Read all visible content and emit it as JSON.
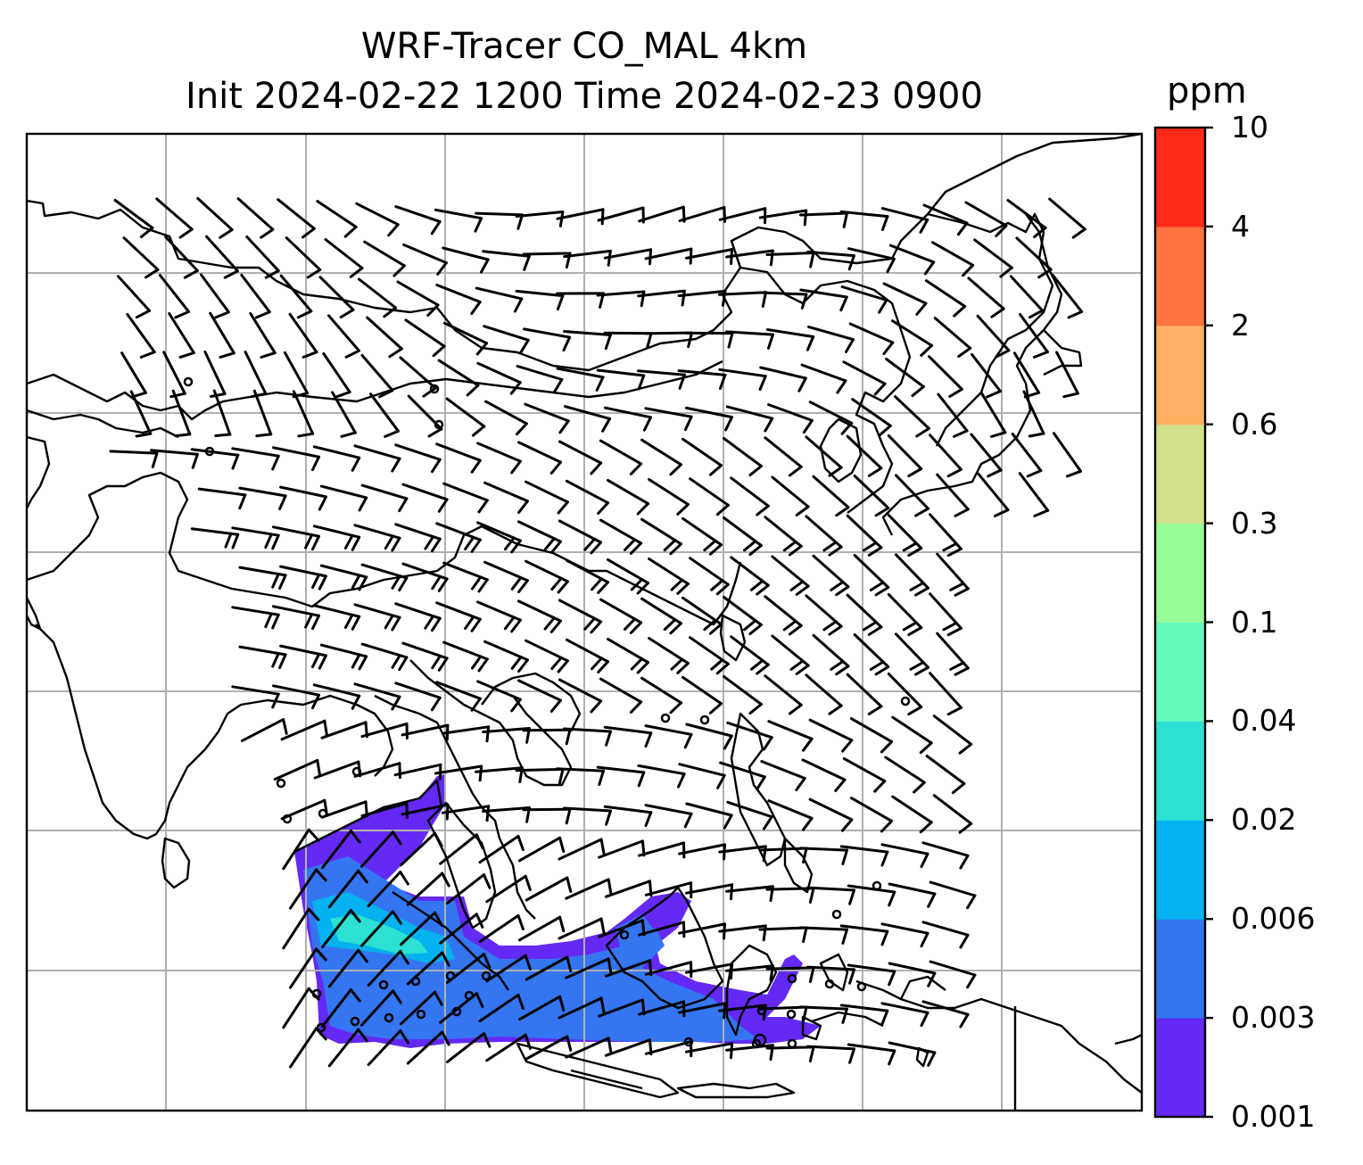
{
  "title": {
    "line1": "WRF-Tracer CO_MAL 4km",
    "line2": "Init 2024-02-22 1200 Time 2024-02-23 0900"
  },
  "colorbar": {
    "unit": "ppm",
    "levels": [
      "0.001",
      "0.003",
      "0.006",
      "0.02",
      "0.04",
      "0.1",
      "0.3",
      "0.6",
      "2",
      "4",
      "10"
    ],
    "colors": [
      "#6529f5",
      "#3476f2",
      "#03b2ee",
      "#2ce0d3",
      "#62fbbc",
      "#97fb98",
      "#d1e08a",
      "#ffb062",
      "#ff7340",
      "#ff2a17"
    ]
  },
  "map": {
    "background": "#ffffff",
    "gridline_color": "#b0b0b0",
    "coastline_color": "#000000",
    "field": "CO_MAL tracer concentration with wind barbs"
  }
}
